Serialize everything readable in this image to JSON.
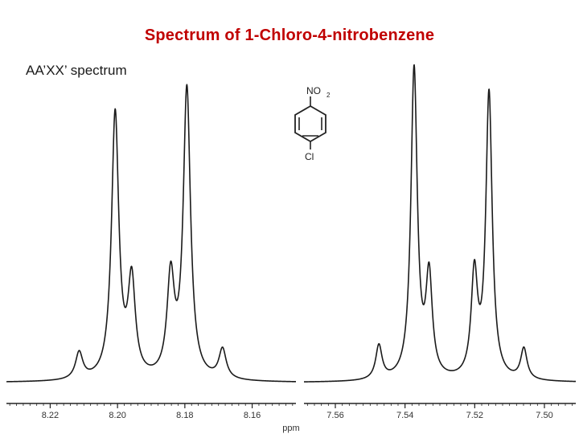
{
  "slide": {
    "title": "Spectrum of 1-Chloro-4-nitrobenzene",
    "subtitle": "AA’XX’ spectrum"
  },
  "colors": {
    "title": "#c00000",
    "trace": "#1a1a1a",
    "axis": "#222222",
    "background": "#ffffff"
  },
  "structure": {
    "top_group": "NO",
    "top_group_subscript": "2",
    "bottom_group": "Cl"
  },
  "chart_data": [
    {
      "type": "line",
      "xlabel": "ppm",
      "xlim": [
        8.233,
        8.147
      ],
      "x_ticks": [
        8.22,
        8.2,
        8.18,
        8.16
      ],
      "x_tick_labels": [
        "8.22",
        "8.20",
        "8.18",
        "8.16"
      ],
      "baseline": 0,
      "ylim": [
        0,
        1.0
      ],
      "peaks": [
        {
          "x": 8.2114,
          "height": 0.09,
          "width": 0.0013
        },
        {
          "x": 8.2007,
          "height": 0.89,
          "width": 0.0013
        },
        {
          "x": 8.1958,
          "height": 0.32,
          "width": 0.0013
        },
        {
          "x": 8.1842,
          "height": 0.33,
          "width": 0.0013
        },
        {
          "x": 8.1794,
          "height": 0.97,
          "width": 0.0013
        },
        {
          "x": 8.1688,
          "height": 0.1,
          "width": 0.0013
        }
      ]
    },
    {
      "type": "line",
      "xlabel": "ppm",
      "xlim": [
        7.569,
        7.491
      ],
      "x_ticks": [
        7.56,
        7.54,
        7.52,
        7.5
      ],
      "x_tick_labels": [
        "7.56",
        "7.54",
        "7.52",
        "7.50"
      ],
      "baseline": 0,
      "ylim": [
        0,
        1.0
      ],
      "peaks": [
        {
          "x": 7.5475,
          "height": 0.11,
          "width": 0.0011
        },
        {
          "x": 7.5374,
          "height": 1.0,
          "width": 0.0011
        },
        {
          "x": 7.5331,
          "height": 0.32,
          "width": 0.0011
        },
        {
          "x": 7.5201,
          "height": 0.33,
          "width": 0.0011
        },
        {
          "x": 7.5159,
          "height": 0.92,
          "width": 0.0011
        },
        {
          "x": 7.5059,
          "height": 0.1,
          "width": 0.0011
        }
      ]
    }
  ]
}
